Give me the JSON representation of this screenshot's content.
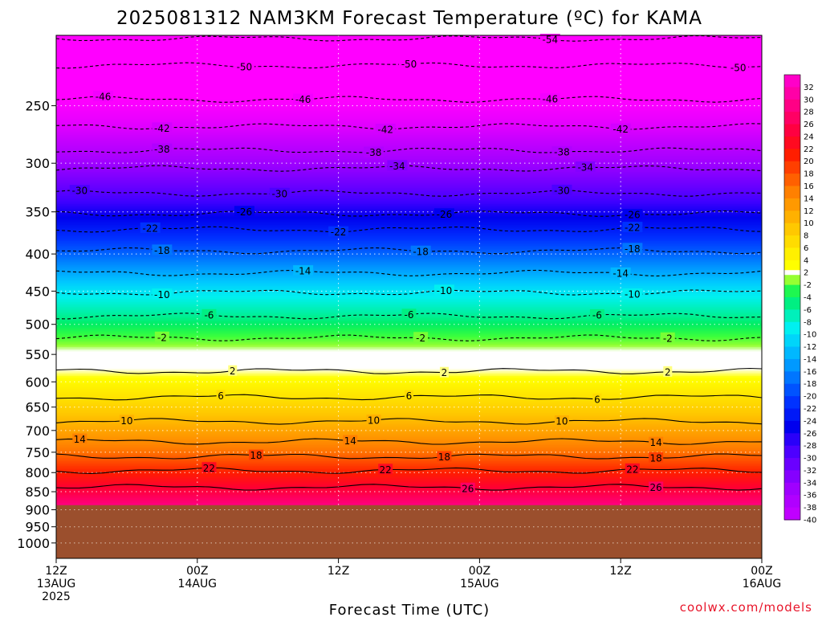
{
  "chart_data": {
    "type": "heatmap",
    "title": "2025081312 NAM3KM Forecast Temperature (ºC) for KAMA",
    "xlabel": "Forecast Time (UTC)",
    "credit": "coolwx.com/models",
    "x_ticks": [
      {
        "hour": 0,
        "lines": [
          "12Z",
          "13AUG",
          "2025"
        ]
      },
      {
        "hour": 12,
        "lines": [
          "00Z",
          "14AUG"
        ]
      },
      {
        "hour": 24,
        "lines": [
          "12Z"
        ]
      },
      {
        "hour": 36,
        "lines": [
          "00Z",
          "15AUG"
        ]
      },
      {
        "hour": 48,
        "lines": [
          "12Z"
        ]
      },
      {
        "hour": 60,
        "lines": [
          "00Z",
          "16AUG"
        ]
      }
    ],
    "xlim": [
      0,
      60
    ],
    "y_axis": {
      "scale": "log-pressure",
      "inverted": true,
      "range": [
        1050,
        200
      ],
      "ticks": [
        250,
        300,
        350,
        400,
        450,
        500,
        550,
        600,
        650,
        700,
        750,
        800,
        850,
        900,
        950,
        1000
      ]
    },
    "grid": true,
    "surface_pressure": 887,
    "colorbar_ticks": [
      32,
      30,
      28,
      26,
      24,
      22,
      20,
      18,
      16,
      14,
      12,
      10,
      8,
      6,
      4,
      2,
      -2,
      -4,
      -6,
      -8,
      -10,
      -12,
      -14,
      -16,
      -18,
      -20,
      -22,
      -24,
      -26,
      -28,
      -30,
      -32,
      -34,
      -36,
      -38,
      -40
    ],
    "profile": [
      {
        "p": 200,
        "t": -56
      },
      {
        "p": 250,
        "t": -47
      },
      {
        "p": 300,
        "t": -36
      },
      {
        "p": 350,
        "t": -27
      },
      {
        "p": 400,
        "t": -19
      },
      {
        "p": 450,
        "t": -11
      },
      {
        "p": 500,
        "t": -5
      },
      {
        "p": 550,
        "t": 0
      },
      {
        "p": 600,
        "t": 3
      },
      {
        "p": 650,
        "t": 7
      },
      {
        "p": 700,
        "t": 11
      },
      {
        "p": 750,
        "t": 15
      },
      {
        "p": 800,
        "t": 20
      },
      {
        "p": 850,
        "t": 24
      },
      {
        "p": 900,
        "t": 29
      }
    ],
    "contours": [
      {
        "t": -54,
        "p": 202,
        "label_hours": [
          42
        ]
      },
      {
        "t": -50,
        "p": 220,
        "label_hours": [
          16,
          30,
          58
        ]
      },
      {
        "t": -46,
        "p": 245,
        "label_hours": [
          4,
          21,
          42
        ]
      },
      {
        "t": -42,
        "p": 267,
        "label_hours": [
          9,
          28,
          48
        ]
      },
      {
        "t": -38,
        "p": 288,
        "label_hours": [
          9,
          27,
          43
        ]
      },
      {
        "t": -34,
        "p": 305,
        "label_hours": [
          29,
          45
        ]
      },
      {
        "t": -30,
        "p": 330,
        "label_hours": [
          2,
          19,
          43
        ]
      },
      {
        "t": -26,
        "p": 352,
        "label_hours": [
          16,
          33,
          49
        ]
      },
      {
        "t": -22,
        "p": 370,
        "label_hours": [
          8,
          24,
          49
        ]
      },
      {
        "t": -18,
        "p": 396,
        "label_hours": [
          9,
          31,
          49
        ]
      },
      {
        "t": -14,
        "p": 425,
        "label_hours": [
          21,
          48
        ]
      },
      {
        "t": -10,
        "p": 452,
        "label_hours": [
          9,
          33,
          49
        ]
      },
      {
        "t": -6,
        "p": 487,
        "label_hours": [
          13,
          30,
          46
        ]
      },
      {
        "t": -2,
        "p": 522,
        "label_hours": [
          9,
          31,
          52
        ]
      },
      {
        "t": 2,
        "p": 580,
        "label_hours": [
          15,
          33,
          52
        ]
      },
      {
        "t": 6,
        "p": 630,
        "label_hours": [
          14,
          30,
          46
        ]
      },
      {
        "t": 10,
        "p": 680,
        "label_hours": [
          6,
          27,
          43
        ]
      },
      {
        "t": 14,
        "p": 725,
        "label_hours": [
          2,
          25,
          51
        ]
      },
      {
        "t": 18,
        "p": 760,
        "label_hours": [
          17,
          33,
          51
        ]
      },
      {
        "t": 22,
        "p": 795,
        "label_hours": [
          13,
          28,
          49
        ]
      },
      {
        "t": 26,
        "p": 838,
        "label_hours": [
          35,
          51
        ]
      }
    ]
  }
}
